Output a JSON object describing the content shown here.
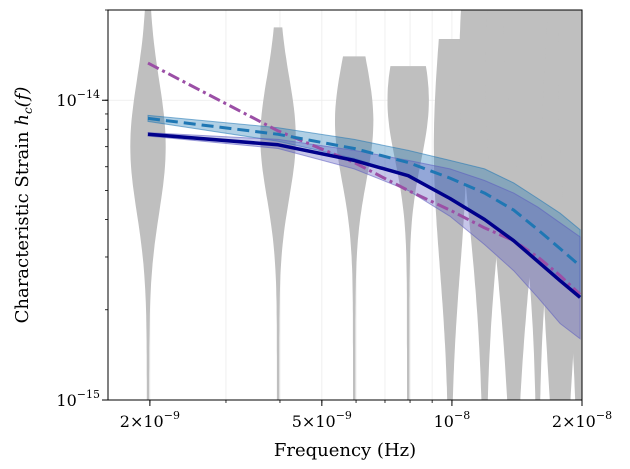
{
  "chart_data": {
    "type": "line",
    "title": "",
    "xlabel": "Frequency (Hz)",
    "ylabel": "Characteristic Strain",
    "ylabel_symbol": "h",
    "ylabel_subscript": "c",
    "ylabel_arg": "(f)",
    "x_scale": "log",
    "y_scale": "log",
    "xlim": [
      1.6e-09,
      2e-08
    ],
    "ylim": [
      1e-15,
      2e-14
    ],
    "grid": true,
    "x_ticks": [
      {
        "value": 2e-09,
        "mantissa": "2×10",
        "exp": "−9"
      },
      {
        "value": 5e-09,
        "mantissa": "5×10",
        "exp": "−9"
      },
      {
        "value": 1e-08,
        "mantissa": "10",
        "exp": "−8"
      },
      {
        "value": 2e-08,
        "mantissa": "2×10",
        "exp": "−8"
      }
    ],
    "y_ticks": [
      {
        "value": 1e-15,
        "mantissa": "10",
        "exp": "−15"
      },
      {
        "value": 1e-14,
        "mantissa": "10",
        "exp": "−14"
      }
    ],
    "frequencies": [
      1.98e-09,
      3.96e-09,
      5.94e-09,
      7.92e-09,
      9.9e-09,
      1.19e-08,
      1.39e-08,
      1.58e-08,
      1.78e-08,
      1.98e-08
    ],
    "series": [
      {
        "style": "dashdot",
        "color": "#9b4fa6",
        "values": [
          1.33e-14,
          7.9e-15,
          6.2e-15,
          5e-15,
          4.3e-15,
          3.75e-15,
          3.4e-15,
          3e-15,
          2.6e-15,
          2.25e-15
        ]
      },
      {
        "style": "dashed",
        "color": "#1f77b4",
        "values": [
          8.7e-15,
          7.7e-15,
          6.9e-15,
          6.2e-15,
          5.5e-15,
          4.9e-15,
          4.3e-15,
          3.7e-15,
          3.2e-15,
          2.8e-15
        ],
        "band_lo": [
          8.5e-15,
          7.3e-15,
          6.4e-15,
          5.6e-15,
          4.7e-15,
          4e-15,
          3.4e-15,
          2.9e-15,
          2.5e-15,
          2.2e-15
        ],
        "band_hi": [
          8.9e-15,
          8.1e-15,
          7.4e-15,
          6.8e-15,
          6.3e-15,
          5.9e-15,
          5.3e-15,
          4.7e-15,
          4.2e-15,
          3.7e-15
        ]
      },
      {
        "style": "solid",
        "color": "#00008b",
        "values": [
          7.7e-15,
          7.1e-15,
          6.3e-15,
          5.6e-15,
          4.7e-15,
          4e-15,
          3.4e-15,
          2.9e-15,
          2.5e-15,
          2.2e-15
        ],
        "band_lo": [
          7.6e-15,
          6.9e-15,
          5.9e-15,
          5e-15,
          4.1e-15,
          3.3e-15,
          2.7e-15,
          2.2e-15,
          1.8e-15,
          1.6e-15
        ],
        "band_hi": [
          7.8e-15,
          7.4e-15,
          6.8e-15,
          6.3e-15,
          5.9e-15,
          5.4e-15,
          4.9e-15,
          4.4e-15,
          3.9e-15,
          3.5e-15
        ]
      }
    ],
    "violins": [
      {
        "f": 1.98e-09,
        "center": 7e-15,
        "spread": 0.22,
        "lo": 1e-15,
        "hi": 2e-14,
        "width": 0.55
      },
      {
        "f": 3.96e-09,
        "center": 7.5e-15,
        "spread": 0.2,
        "lo": 1e-15,
        "hi": 1.75e-14,
        "width": 0.55
      },
      {
        "f": 5.94e-09,
        "center": 8.5e-15,
        "spread": 0.2,
        "lo": 1e-15,
        "hi": 1.4e-14,
        "width": 0.6
      },
      {
        "f": 7.92e-09,
        "center": 1e-14,
        "spread": 0.2,
        "lo": 1e-15,
        "hi": 1.3e-14,
        "width": 0.65
      },
      {
        "f": 9.9e-09,
        "center": 7e-15,
        "spread": 0.4,
        "lo": 1e-15,
        "hi": 1.6e-14,
        "width": 0.5
      },
      {
        "f": 1.19e-08,
        "center": 1.3e-14,
        "spread": 0.5,
        "lo": 1e-15,
        "hi": 2e-14,
        "width": 0.8
      },
      {
        "f": 1.39e-08,
        "center": 1.2e-14,
        "spread": 0.6,
        "lo": 1e-15,
        "hi": 2e-14,
        "width": 0.9
      },
      {
        "f": 1.58e-08,
        "center": 1.9e-14,
        "spread": 0.5,
        "lo": 1e-15,
        "hi": 2e-14,
        "width": 1.1
      },
      {
        "f": 1.78e-08,
        "center": 5e-15,
        "spread": 0.6,
        "lo": 1e-15,
        "hi": 2e-14,
        "width": 0.6
      },
      {
        "f": 1.98e-08,
        "center": 1.3e-14,
        "spread": 0.6,
        "lo": 1e-15,
        "hi": 2e-14,
        "width": 0.7
      }
    ],
    "colors": {
      "violin": "#bfbfbf",
      "band_blue": "#1f77b4",
      "band_purple": "#5b5bbf"
    }
  }
}
